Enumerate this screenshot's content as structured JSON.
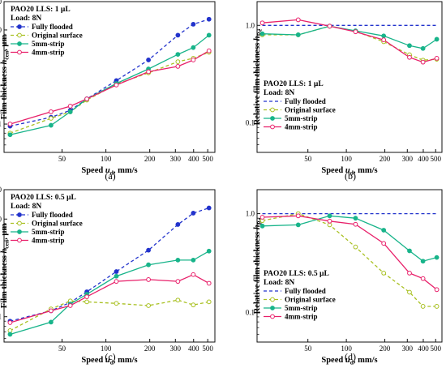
{
  "styles": {
    "Fully flooded": {
      "color": "#2233cc",
      "dash": "4,3",
      "marker": "dot"
    },
    "Original surface": {
      "color": "#a8c020",
      "dash": "4,3",
      "marker": "dot"
    },
    "5mm-strip": {
      "color": "#18b48a",
      "dash": "",
      "marker": "dot"
    },
    "4mm-strip": {
      "color": "#e8206a",
      "dash": "",
      "marker": "ring"
    }
  },
  "chart_data": [
    {
      "type": "line",
      "caption": "(a)",
      "title": "PAO20   LLS: 1 µL",
      "subtitle": "Load:   8N",
      "xlabel": "Speed u_d, mm/s",
      "ylabel": "Film thickness h_cen, µm",
      "xscale": "log",
      "yscale": "log",
      "xlim": [
        20,
        560
      ],
      "ylim": [
        0.05,
        2.0
      ],
      "xticks": [
        50,
        100,
        200,
        300,
        400,
        500
      ],
      "yticks": [
        {
          "v": 0.1,
          "label": "0.1"
        },
        {
          "v": 1,
          "label": "1.0"
        },
        {
          "v": 2,
          "label": "2.0"
        }
      ],
      "legend_pos": "top-left",
      "x": [
        22,
        42,
        57,
        74,
        118,
        196,
        312,
        398,
        510
      ],
      "series": [
        {
          "name": "Fully flooded",
          "values": [
            0.095,
            0.118,
            0.14,
            0.185,
            0.29,
            0.48,
            0.88,
            1.15,
            1.3
          ]
        },
        {
          "name": "Original surface",
          "values": [
            0.08,
            0.115,
            0.135,
            0.18,
            0.265,
            0.35,
            0.46,
            0.5,
            0.58
          ]
        },
        {
          "name": "5mm-strip",
          "values": [
            0.077,
            0.097,
            0.135,
            0.185,
            0.27,
            0.385,
            0.55,
            0.65,
            0.88
          ]
        },
        {
          "name": "4mm-strip",
          "values": [
            0.1,
            0.135,
            0.155,
            0.185,
            0.26,
            0.36,
            0.41,
            0.48,
            0.6
          ]
        }
      ]
    },
    {
      "type": "line",
      "caption": "(b)",
      "title": "PAO20   LLS: 1 µL",
      "subtitle": "Load:   8N",
      "xlabel": "Speed u_d, mm/s",
      "ylabel": "Relative film thickness h_Re",
      "xscale": "log",
      "yscale": "log",
      "xlim": [
        20,
        560
      ],
      "ylim": [
        0.05,
        1.75
      ],
      "xticks": [
        50,
        100,
        200,
        300,
        400,
        500
      ],
      "yticks": [
        {
          "v": 0.1,
          "label": "0.1"
        },
        {
          "v": 1,
          "label": "1.0"
        }
      ],
      "legend_pos": "bottom-left",
      "x": [
        22,
        42,
        74,
        118,
        196,
        312,
        398,
        510
      ],
      "series": [
        {
          "name": "Fully flooded",
          "values": [
            1.0,
            1.0,
            1.0,
            1.0,
            1.0,
            1.0,
            1.0,
            1.0
          ]
        },
        {
          "name": "Original surface",
          "values": [
            0.8,
            0.8,
            0.98,
            0.87,
            0.68,
            0.5,
            0.44,
            0.45
          ]
        },
        {
          "name": "5mm-strip",
          "values": [
            0.82,
            0.8,
            0.98,
            0.88,
            0.78,
            0.62,
            0.58,
            0.72
          ]
        },
        {
          "name": "4mm-strip",
          "values": [
            1.06,
            1.14,
            0.98,
            0.86,
            0.71,
            0.47,
            0.42,
            0.46
          ]
        }
      ]
    },
    {
      "type": "line",
      "caption": "(c)",
      "title": "PAO20   LLS: 0.5 µL",
      "subtitle": "Load:   8N",
      "xlabel": "Speed u_d, mm/s",
      "ylabel": "Film thickness h_cen, µm",
      "xscale": "log",
      "yscale": "log",
      "xlim": [
        20,
        560
      ],
      "ylim": [
        0.055,
        2.0
      ],
      "xticks": [
        50,
        100,
        200,
        300,
        400,
        500
      ],
      "yticks": [
        {
          "v": 0.1,
          "label": "0.1"
        },
        {
          "v": 1,
          "label": "1.0"
        },
        {
          "v": 2,
          "label": "2.0"
        }
      ],
      "legend_pos": "top-left",
      "x": [
        22,
        42,
        57,
        74,
        118,
        196,
        312,
        398,
        510
      ],
      "series": [
        {
          "name": "Fully flooded",
          "values": [
            0.09,
            0.115,
            0.14,
            0.18,
            0.29,
            0.48,
            0.88,
            1.15,
            1.3
          ]
        },
        {
          "name": "Original surface",
          "values": [
            0.072,
            0.12,
            0.145,
            0.142,
            0.137,
            0.13,
            0.148,
            0.132,
            0.142
          ]
        },
        {
          "name": "5mm-strip",
          "values": [
            0.066,
            0.088,
            0.135,
            0.17,
            0.26,
            0.34,
            0.38,
            0.38,
            0.47
          ]
        },
        {
          "name": "4mm-strip",
          "values": [
            0.087,
            0.115,
            0.13,
            0.16,
            0.23,
            0.24,
            0.23,
            0.27,
            0.22
          ]
        }
      ]
    },
    {
      "type": "line",
      "caption": "(d)",
      "title": "PAO20   LLS: 0.5 µL",
      "subtitle": "Load:   8N",
      "xlabel": "Speed u_d, mm/s",
      "ylabel": "Relative film thickness h_Re",
      "xscale": "log",
      "yscale": "log",
      "xlim": [
        20,
        560
      ],
      "ylim": [
        0.05,
        1.75
      ],
      "xticks": [
        50,
        100,
        200,
        300,
        400,
        500
      ],
      "yticks": [
        {
          "v": 0.1,
          "label": "0.1"
        },
        {
          "v": 1,
          "label": "1.0"
        }
      ],
      "legend_pos": "bottom-left",
      "x": [
        22,
        42,
        74,
        118,
        196,
        312,
        398,
        510
      ],
      "series": [
        {
          "name": "Fully flooded",
          "values": [
            1.0,
            1.0,
            1.0,
            1.0,
            1.0,
            1.0,
            1.0,
            1.0
          ]
        },
        {
          "name": "Original surface",
          "values": [
            0.85,
            1.0,
            0.77,
            0.46,
            0.25,
            0.16,
            0.115,
            0.115
          ]
        },
        {
          "name": "5mm-strip",
          "values": [
            0.75,
            0.77,
            0.95,
            0.9,
            0.68,
            0.42,
            0.33,
            0.36
          ]
        },
        {
          "name": "4mm-strip",
          "values": [
            0.92,
            0.95,
            0.84,
            0.78,
            0.5,
            0.25,
            0.22,
            0.17
          ]
        }
      ]
    }
  ]
}
